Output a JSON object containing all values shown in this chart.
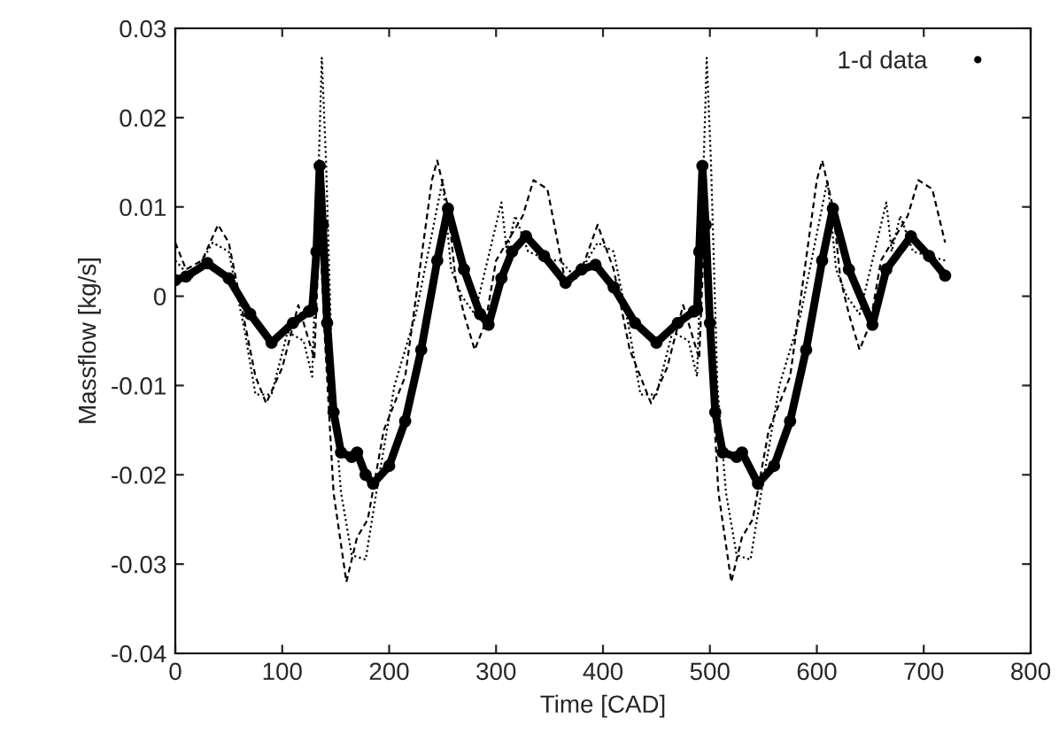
{
  "chart_data": {
    "type": "line",
    "xlabel": "Time [CAD]",
    "ylabel": "Massflow [kg/s]",
    "xlim": [
      0,
      800
    ],
    "xticks": [
      0,
      100,
      200,
      300,
      400,
      500,
      600,
      700,
      800
    ],
    "ylim": [
      -0.04,
      0.03
    ],
    "yticks": [
      -0.04,
      -0.03,
      -0.02,
      -0.01,
      0,
      0.01,
      0.02,
      0.03
    ],
    "grid": false,
    "legend": "top right",
    "series": [
      {
        "name": "1-d data",
        "color": "#000000",
        "marker": "circle",
        "line_style": "solid",
        "x": [
          0,
          10,
          30,
          50,
          70,
          90,
          110,
          125,
          128,
          132,
          135,
          138,
          142,
          148,
          155,
          165,
          170,
          178,
          185,
          200,
          215,
          230,
          245,
          255,
          270,
          285,
          293,
          305,
          315,
          328,
          345,
          365,
          380,
          393,
          410,
          430,
          450,
          470,
          485,
          488,
          490,
          493,
          496,
          500,
          505,
          512,
          525,
          530,
          545,
          560,
          575,
          590,
          605,
          615,
          630,
          652,
          665,
          688,
          705,
          720
        ],
        "values": [
          0.0018,
          0.0022,
          0.0037,
          0.002,
          -0.002,
          -0.0052,
          -0.003,
          -0.0017,
          -0.0015,
          0.005,
          0.0146,
          0.008,
          -0.003,
          -0.013,
          -0.0175,
          -0.018,
          -0.0175,
          -0.02,
          -0.021,
          -0.019,
          -0.014,
          -0.006,
          0.004,
          0.0098,
          0.003,
          -0.002,
          -0.0032,
          0.002,
          0.005,
          0.0067,
          0.0045,
          0.0015,
          0.003,
          0.0035,
          0.001,
          -0.003,
          -0.0052,
          -0.003,
          -0.0017,
          -0.0015,
          0.005,
          0.0146,
          0.008,
          -0.003,
          -0.013,
          -0.0175,
          -0.018,
          -0.0175,
          -0.021,
          -0.019,
          -0.014,
          -0.006,
          0.004,
          0.0098,
          0.003,
          -0.0032,
          0.003,
          0.0067,
          0.0045,
          0.0023
        ]
      },
      {
        "color": "#000000",
        "line_style": "dashed",
        "x": [
          0,
          10,
          25,
          40,
          50,
          65,
          75,
          85,
          100,
          115,
          125,
          130,
          135,
          140,
          148,
          160,
          170,
          180,
          195,
          215,
          240,
          245,
          255,
          262,
          270,
          280,
          290,
          300,
          310,
          325,
          335,
          348,
          365,
          380,
          395,
          410,
          425,
          445,
          460,
          475,
          485,
          490,
          495,
          500,
          508,
          520,
          530,
          540,
          555,
          575,
          600,
          605,
          615,
          622,
          630,
          640,
          650,
          660,
          670,
          685,
          695,
          708,
          720
        ],
        "values": [
          0.006,
          0.003,
          0.004,
          0.008,
          0.006,
          -0.003,
          -0.009,
          -0.012,
          -0.008,
          -0.001,
          -0.005,
          -0.007,
          0.008,
          -0.005,
          -0.022,
          -0.032,
          -0.027,
          -0.025,
          -0.015,
          -0.009,
          0.013,
          0.0152,
          0.01,
          0.002,
          -0.002,
          -0.006,
          -0.003,
          0.004,
          0.006,
          0.009,
          0.013,
          0.012,
          0.0015,
          0.003,
          0.008,
          0.003,
          -0.006,
          -0.012,
          -0.008,
          -0.001,
          -0.005,
          -0.007,
          0.008,
          -0.005,
          -0.022,
          -0.032,
          -0.027,
          -0.025,
          -0.015,
          -0.009,
          0.013,
          0.0152,
          0.01,
          0.002,
          -0.002,
          -0.006,
          -0.003,
          0.004,
          0.006,
          0.009,
          0.013,
          0.012,
          0.006
        ]
      },
      {
        "color": "#000000",
        "line_style": "dotted",
        "x": [
          0,
          15,
          35,
          50,
          65,
          75,
          90,
          105,
          120,
          128,
          133,
          137,
          141,
          147,
          155,
          165,
          178,
          188,
          205,
          225,
          250,
          258,
          268,
          280,
          292,
          305,
          310,
          318,
          330,
          350,
          360,
          375,
          395,
          410,
          425,
          435,
          450,
          465,
          480,
          488,
          493,
          497,
          501,
          507,
          515,
          525,
          538,
          548,
          565,
          585,
          610,
          618,
          628,
          640,
          652,
          665,
          670,
          678,
          690,
          720
        ],
        "values": [
          0.004,
          0.002,
          0.006,
          0.005,
          -0.004,
          -0.011,
          -0.011,
          -0.004,
          -0.005,
          -0.009,
          0.01,
          0.0267,
          0.015,
          -0.01,
          -0.022,
          -0.029,
          -0.0295,
          -0.022,
          -0.01,
          -0.002,
          0.013,
          0.003,
          0.0,
          -0.002,
          0.004,
          0.0105,
          0.005,
          0.009,
          0.005,
          0.004,
          0.004,
          0.002,
          0.006,
          0.005,
          -0.004,
          -0.011,
          -0.011,
          -0.004,
          -0.005,
          -0.009,
          0.01,
          0.0267,
          0.015,
          -0.01,
          -0.022,
          -0.029,
          -0.0295,
          -0.022,
          -0.01,
          -0.002,
          0.013,
          0.003,
          0.0,
          -0.002,
          0.004,
          0.0105,
          0.005,
          0.009,
          0.005,
          0.004
        ]
      }
    ]
  }
}
